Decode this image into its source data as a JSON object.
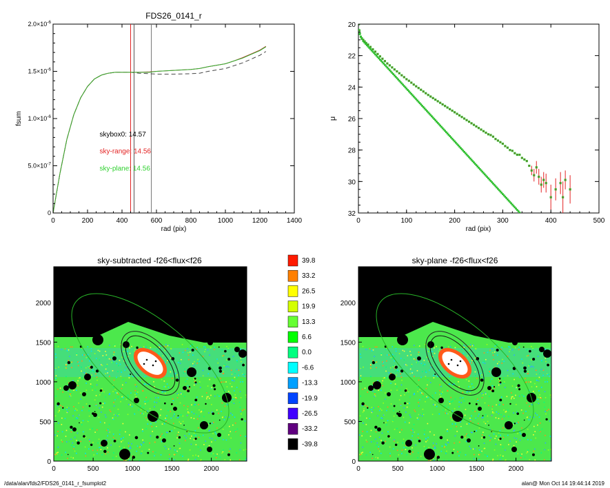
{
  "chart_data": [
    {
      "type": "line",
      "title": "FDS26_0141_r",
      "xlabel": "rad (pix)",
      "ylabel": "fsum",
      "xlim": [
        0,
        1400
      ],
      "ylim": [
        0,
        2e-06
      ],
      "xticks": [
        "0",
        "200",
        "400",
        "600",
        "800",
        "1000",
        "1200",
        "1400"
      ],
      "yticks": [
        {
          "value": 0,
          "base": "0",
          "exp": ""
        },
        {
          "value": 5e-07,
          "base": "5.0×10",
          "exp": "-7"
        },
        {
          "value": 1e-06,
          "base": "1.0×10",
          "exp": "-6"
        },
        {
          "value": 1.5e-06,
          "base": "1.5×10",
          "exp": "-6"
        },
        {
          "value": 2e-06,
          "base": "2.0×10",
          "exp": "-6"
        }
      ],
      "series": [
        {
          "color": "#2fae2f",
          "style": "solid",
          "x": [
            0,
            40,
            80,
            120,
            160,
            200,
            240,
            280,
            320,
            360,
            400,
            450,
            500,
            560,
            600,
            700,
            800,
            850,
            900,
            1000,
            1050,
            1100,
            1150,
            1200,
            1235
          ],
          "y": [
            0,
            4.2e-07,
            7.8e-07,
            1.04e-06,
            1.22e-06,
            1.34e-06,
            1.42e-06,
            1.46e-06,
            1.48e-06,
            1.49e-06,
            1.49e-06,
            1.49e-06,
            1.49e-06,
            1.49e-06,
            1.5e-06,
            1.51e-06,
            1.52e-06,
            1.53e-06,
            1.55e-06,
            1.58e-06,
            1.61e-06,
            1.64e-06,
            1.68e-06,
            1.72e-06,
            1.76e-06
          ]
        },
        {
          "color": "#c0392b",
          "style": "solid",
          "x": [
            0,
            40,
            80,
            120,
            160,
            200,
            240,
            280,
            320,
            360,
            400,
            450,
            500,
            560,
            600,
            700,
            800,
            850,
            900,
            1000,
            1050,
            1100,
            1150,
            1200,
            1235
          ],
          "y": [
            0,
            4.2e-07,
            7.8e-07,
            1.04e-06,
            1.22e-06,
            1.34e-06,
            1.42e-06,
            1.46e-06,
            1.48e-06,
            1.49e-06,
            1.49e-06,
            1.49e-06,
            1.49e-06,
            1.495e-06,
            1.5e-06,
            1.51e-06,
            1.52e-06,
            1.53e-06,
            1.55e-06,
            1.58e-06,
            1.61e-06,
            1.645e-06,
            1.685e-06,
            1.725e-06,
            1.765e-06
          ]
        },
        {
          "color": "#444444",
          "style": "dashed",
          "x": [
            0,
            40,
            80,
            120,
            160,
            200,
            240,
            280,
            320,
            360,
            400,
            450,
            500,
            560,
            600,
            700,
            800,
            850,
            900,
            1000,
            1050,
            1100,
            1150,
            1200,
            1235
          ],
          "y": [
            0,
            4.2e-07,
            7.8e-07,
            1.04e-06,
            1.22e-06,
            1.34e-06,
            1.42e-06,
            1.46e-06,
            1.48e-06,
            1.49e-06,
            1.49e-06,
            1.49e-06,
            1.48e-06,
            1.475e-06,
            1.47e-06,
            1.47e-06,
            1.475e-06,
            1.48e-06,
            1.5e-06,
            1.53e-06,
            1.56e-06,
            1.59e-06,
            1.63e-06,
            1.67e-06,
            1.71e-06
          ]
        }
      ],
      "vlines": [
        {
          "x": 450,
          "color": "#e32222"
        },
        {
          "x": 470,
          "color": "#555555"
        },
        {
          "x": 570,
          "color": "#777777"
        }
      ],
      "annotations": [
        {
          "text": "skybox0: 14.57",
          "color": "#000000",
          "x": 270,
          "y": 8.1e-07
        },
        {
          "text": "sky-range: 14.56",
          "color": "#e32222",
          "x": 270,
          "y": 6.3e-07
        },
        {
          "text": "sky-plane: 14.56",
          "color": "#2fd02f",
          "x": 270,
          "y": 4.5e-07
        }
      ]
    },
    {
      "type": "scatter",
      "title": "",
      "xlabel": "rad (pix)",
      "ylabel": "μ",
      "xlim": [
        0,
        500
      ],
      "ylim": [
        32,
        20
      ],
      "xticks": [
        "0",
        "100",
        "200",
        "300",
        "400",
        "500"
      ],
      "yticks": [
        "20",
        "22",
        "24",
        "26",
        "28",
        "30",
        "32"
      ],
      "marker_color": "#2fbf2f",
      "point_color": "#8a5a2a",
      "errorbar_color": "#e32222",
      "points": [
        [
          1,
          20.0
        ],
        [
          2,
          20.4
        ],
        [
          3,
          20.6
        ],
        [
          5,
          20.8
        ],
        [
          7,
          20.9
        ],
        [
          10,
          21.0
        ],
        [
          13,
          21.1
        ],
        [
          16,
          21.2
        ],
        [
          20,
          21.3
        ],
        [
          25,
          21.45
        ],
        [
          30,
          21.6
        ],
        [
          35,
          21.75
        ],
        [
          40,
          21.9
        ],
        [
          45,
          22.05
        ],
        [
          50,
          22.2
        ],
        [
          55,
          22.35
        ],
        [
          60,
          22.5
        ],
        [
          65,
          22.62
        ],
        [
          70,
          22.75
        ],
        [
          75,
          22.88
        ],
        [
          80,
          23.0
        ],
        [
          85,
          23.12
        ],
        [
          90,
          23.25
        ],
        [
          95,
          23.37
        ],
        [
          100,
          23.5
        ],
        [
          105,
          23.6
        ],
        [
          110,
          23.72
        ],
        [
          115,
          23.84
        ],
        [
          120,
          23.95
        ],
        [
          125,
          24.06
        ],
        [
          130,
          24.17
        ],
        [
          135,
          24.28
        ],
        [
          140,
          24.39
        ],
        [
          145,
          24.5
        ],
        [
          150,
          24.6
        ],
        [
          155,
          24.7
        ],
        [
          160,
          24.8
        ],
        [
          165,
          24.9
        ],
        [
          170,
          25.0
        ],
        [
          175,
          25.1
        ],
        [
          180,
          25.2
        ],
        [
          185,
          25.3
        ],
        [
          190,
          25.4
        ],
        [
          195,
          25.5
        ],
        [
          200,
          25.6
        ],
        [
          205,
          25.7
        ],
        [
          210,
          25.8
        ],
        [
          215,
          25.9
        ],
        [
          220,
          26.0
        ],
        [
          225,
          26.1
        ],
        [
          230,
          26.2
        ],
        [
          235,
          26.3
        ],
        [
          240,
          26.4
        ],
        [
          245,
          26.5
        ],
        [
          250,
          26.6
        ],
        [
          255,
          26.7
        ],
        [
          260,
          26.8
        ],
        [
          265,
          26.9
        ],
        [
          270,
          27.0
        ],
        [
          275,
          27.05
        ],
        [
          280,
          27.15
        ],
        [
          285,
          27.3
        ],
        [
          290,
          27.4
        ],
        [
          295,
          27.5
        ],
        [
          300,
          27.6
        ],
        [
          305,
          27.75
        ],
        [
          310,
          27.85
        ],
        [
          315,
          28.0
        ],
        [
          320,
          28.05
        ],
        [
          325,
          28.2
        ],
        [
          330,
          28.3
        ],
        [
          335,
          28.3
        ],
        [
          340,
          28.5
        ],
        [
          345,
          28.6
        ],
        [
          350,
          28.7
        ],
        [
          355,
          29.0
        ],
        [
          360,
          29.3
        ],
        [
          365,
          29.6
        ],
        [
          370,
          29.1
        ],
        [
          375,
          29.7
        ],
        [
          380,
          30.2
        ],
        [
          385,
          29.9
        ],
        [
          390,
          30.1
        ],
        [
          400,
          31.0
        ],
        [
          410,
          30.5
        ],
        [
          420,
          30.1
        ],
        [
          425,
          31.0
        ],
        [
          430,
          29.9
        ],
        [
          440,
          30.5
        ]
      ],
      "errorbars": [
        [
          360,
          29.3,
          0.3
        ],
        [
          365,
          29.6,
          0.4
        ],
        [
          370,
          29.1,
          0.4
        ],
        [
          375,
          29.7,
          0.5
        ],
        [
          380,
          30.2,
          0.5
        ],
        [
          385,
          29.9,
          0.5
        ],
        [
          390,
          30.1,
          0.6
        ],
        [
          400,
          31.0,
          0.8
        ],
        [
          410,
          30.5,
          0.7
        ],
        [
          420,
          30.1,
          0.7
        ],
        [
          425,
          31.0,
          1.0
        ],
        [
          430,
          29.9,
          0.6
        ],
        [
          440,
          30.5,
          0.9
        ]
      ]
    },
    {
      "type": "heatmap",
      "title": "sky-subtracted -f26<flux<f26",
      "xlim": [
        0,
        2450
      ],
      "ylim": [
        0,
        2450
      ],
      "xticks": [
        "0",
        "500",
        "1000",
        "1500",
        "2000"
      ],
      "yticks": [
        "0",
        "500",
        "1000",
        "1500",
        "2000"
      ]
    },
    {
      "type": "heatmap",
      "title": "sky-plane -f26<flux<f26",
      "xlim": [
        0,
        2450
      ],
      "ylim": [
        0,
        2450
      ],
      "xticks": [
        "0",
        "500",
        "1000",
        "1500",
        "2000"
      ],
      "yticks": [
        "0",
        "500",
        "1000",
        "1500",
        "2000"
      ]
    }
  ],
  "colorbar": {
    "labels": [
      "39.8",
      "33.2",
      "26.5",
      "19.9",
      "13.3",
      "6.6",
      "0.0",
      "-6.6",
      "-13.3",
      "-19.9",
      "-26.5",
      "-33.2",
      "-39.8"
    ],
    "colors": [
      "#ff1a00",
      "#ff8000",
      "#ffff00",
      "#d4ff00",
      "#66ff33",
      "#00ff00",
      "#00ff80",
      "#00ffff",
      "#00a0ff",
      "#0044ff",
      "#4000ff",
      "#600080",
      "#000000"
    ]
  },
  "footer": {
    "left": "/data/alan/fds2/FDS26_0141_r_fsumplot2",
    "right": "alan@  Mon Oct 14 19:44:14 2019"
  }
}
